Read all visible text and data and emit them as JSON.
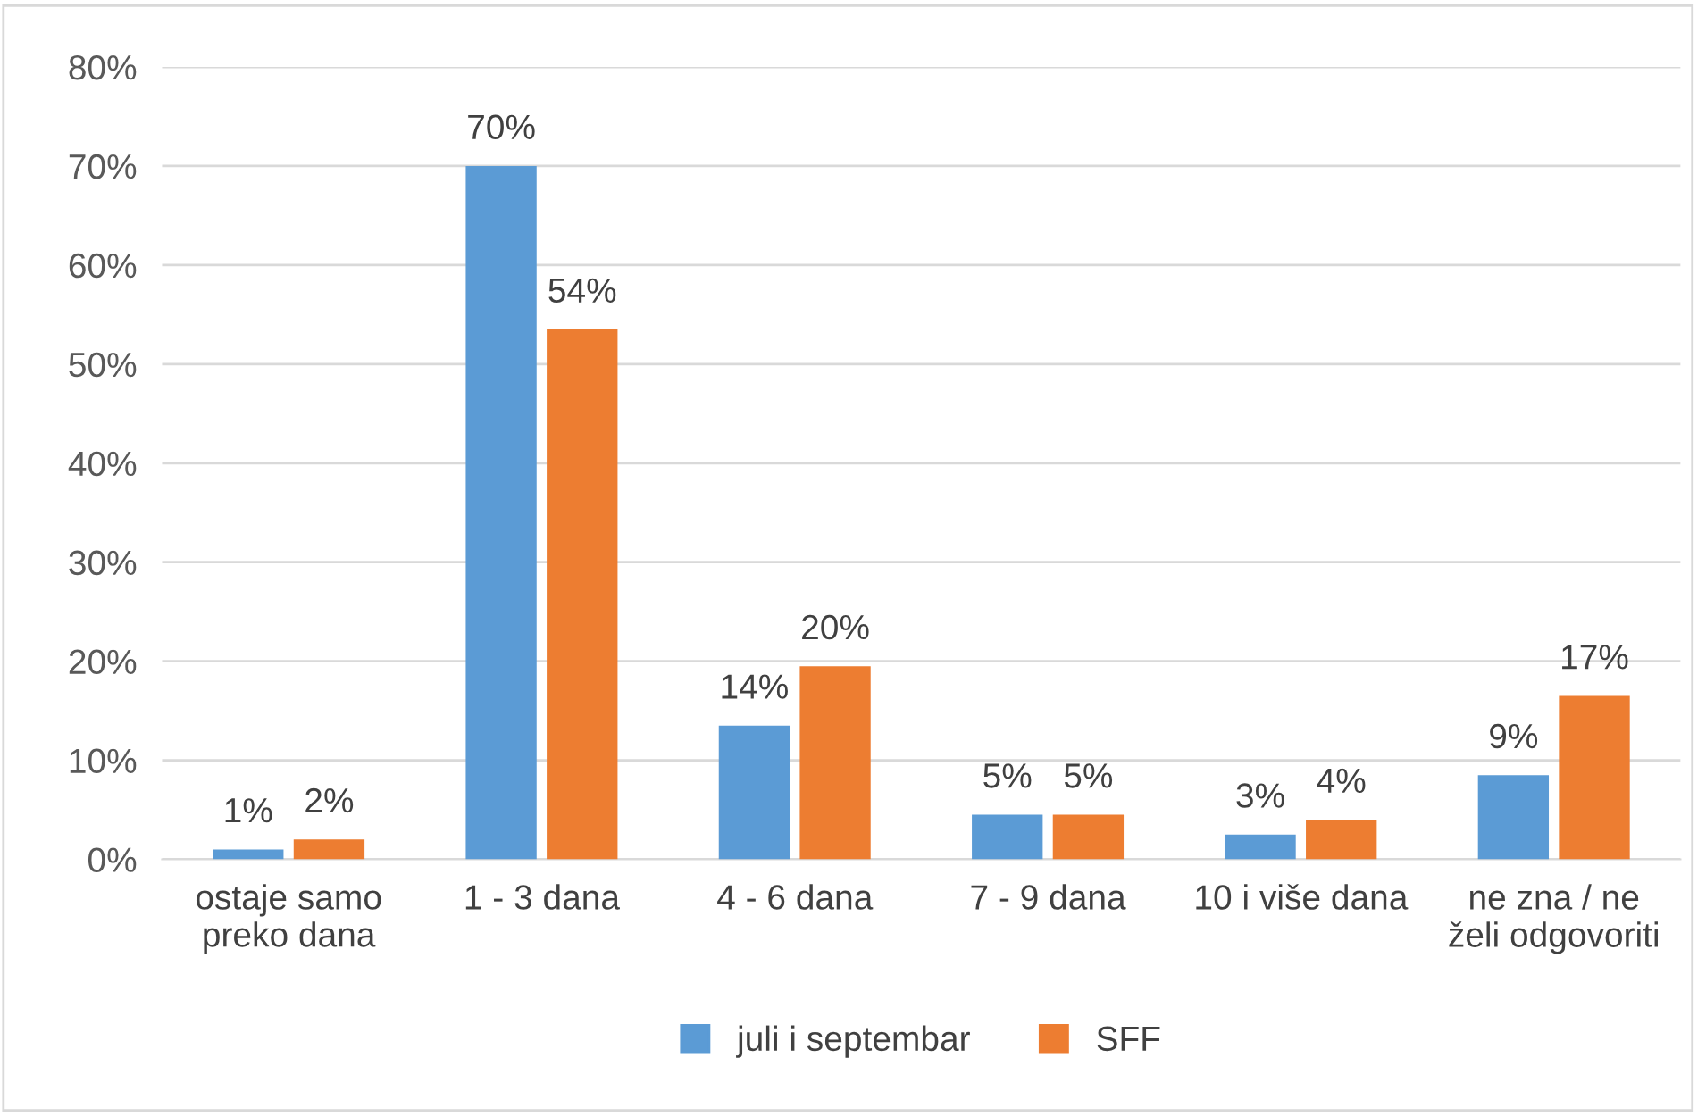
{
  "chart_data": {
    "type": "bar",
    "categories": [
      "ostaje samo\npreko dana",
      "1 - 3 dana",
      "4 - 6 dana",
      "7 - 9 dana",
      "10 i više dana",
      "ne zna / ne\nželi odgovoriti"
    ],
    "series": [
      {
        "name": "juli i septembar",
        "color": "#5b9bd5",
        "values": [
          1,
          70,
          13.5,
          4.5,
          2.5,
          8.5
        ],
        "value_labels": [
          "1%",
          "70%",
          "14%",
          "5%",
          "3%",
          "9%"
        ]
      },
      {
        "name": "SFF",
        "color": "#ed7d31",
        "values": [
          2,
          53.5,
          19.5,
          4.5,
          4,
          16.5
        ],
        "value_labels": [
          "2%",
          "54%",
          "20%",
          "5%",
          "4%",
          "17%"
        ]
      }
    ],
    "ylim": [
      0,
      80
    ],
    "yticks": [
      {
        "value": 0,
        "label": "0%"
      },
      {
        "value": 10,
        "label": "10%"
      },
      {
        "value": 20,
        "label": "20%"
      },
      {
        "value": 30,
        "label": "30%"
      },
      {
        "value": 40,
        "label": "40%"
      },
      {
        "value": 50,
        "label": "50%"
      },
      {
        "value": 60,
        "label": "60%"
      },
      {
        "value": 70,
        "label": "70%"
      },
      {
        "value": 80,
        "label": "80%"
      }
    ],
    "grid": "y",
    "legend": "bottom"
  }
}
